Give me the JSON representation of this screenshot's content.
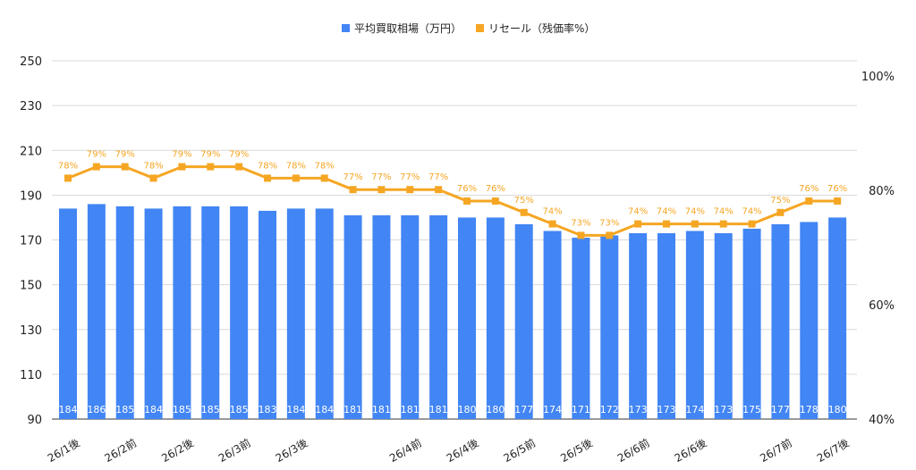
{
  "colors": {
    "bar": "#4285f4",
    "line": "#f5a623",
    "grid": "#d9d9d9"
  },
  "legend": [
    {
      "name": "平均買取相場（万円）",
      "color": "#4285f4",
      "marker": "square"
    },
    {
      "name": "リセール（残価率%）",
      "color": "#f5a623",
      "marker": "square"
    }
  ],
  "chart_data": {
    "type": "bar+line",
    "legend_placement": "top-center",
    "grid": true,
    "x_tick_labels": [
      "26/1後",
      "",
      "26/2前",
      "",
      "26/2後",
      "",
      "26/3前",
      "",
      "26/3後",
      "",
      "",
      "",
      "26/4前",
      "",
      "26/4後",
      "",
      "26/5前",
      "",
      "26/5後",
      "",
      "26/6前",
      "",
      "26/6後",
      "",
      "",
      "26/7前",
      "",
      "26/7後"
    ],
    "categories": [
      "26/1後",
      "",
      "26/2前",
      "",
      "26/2後",
      "",
      "26/3前",
      "",
      "26/3後",
      "",
      "",
      "",
      "26/4前",
      "",
      "26/4後",
      "",
      "26/5前",
      "",
      "26/5後",
      "",
      "26/6前",
      "",
      "26/6後",
      "",
      "",
      "26/7前",
      "",
      "26/7後"
    ],
    "series": [
      {
        "name": "平均買取相場（万円）",
        "type": "bar",
        "axis": "left",
        "values": [
          184,
          186,
          185,
          184,
          185,
          185,
          185,
          183,
          184,
          184,
          181,
          181,
          181,
          181,
          180,
          180,
          177,
          174,
          171,
          172,
          173,
          173,
          174,
          173,
          175,
          177,
          178,
          180
        ]
      },
      {
        "name": "リセール（残価率%）",
        "type": "line",
        "axis": "right",
        "values": [
          78,
          79,
          79,
          78,
          79,
          79,
          79,
          78,
          78,
          78,
          77,
          77,
          77,
          77,
          76,
          76,
          75,
          74,
          73,
          73,
          74,
          74,
          74,
          74,
          74,
          75,
          76,
          76
        ]
      }
    ],
    "y_left": {
      "ticks": [
        90,
        110,
        130,
        150,
        170,
        190,
        210,
        230,
        250
      ],
      "range": [
        90,
        250
      ]
    },
    "y_right": {
      "ticks": [
        "40%",
        "60%",
        "80%",
        "100%"
      ],
      "range": [
        40,
        100
      ]
    }
  }
}
